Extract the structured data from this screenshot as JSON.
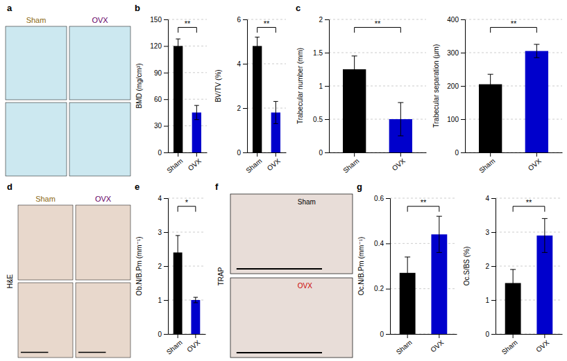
{
  "chart_data": [
    {
      "type": "image",
      "title": "a",
      "color": "#cce8f0",
      "categories": [
        "Sham",
        "OVX"
      ],
      "colors": [
        "#8b6914",
        "#660066"
      ]
    },
    {
      "type": "bar",
      "title": "b",
      "categories": [
        "Sham",
        "OVX"
      ],
      "values": [
        120,
        45
      ],
      "errors": [
        8,
        8
      ],
      "colors": [
        "#000000",
        "#0000cc"
      ],
      "ylabel": "BMD (mg/cm³)",
      "ylim": [
        0,
        150
      ],
      "yticks": [
        0,
        30,
        60,
        90,
        120,
        150
      ],
      "grid": true,
      "annotation": "**"
    },
    {
      "type": "bar",
      "categories": [
        "Sham",
        "OVX"
      ],
      "values": [
        4.8,
        1.8
      ],
      "errors": [
        0.4,
        0.5
      ],
      "colors": [
        "#000000",
        "#0000cc"
      ],
      "ylabel": "BV/TV (%)",
      "ylim": [
        0,
        6
      ],
      "yticks": [
        0,
        2,
        4,
        6
      ],
      "grid": true,
      "annotation": "**"
    },
    {
      "type": "bar",
      "title": "c",
      "categories": [
        "Sham",
        "OVX"
      ],
      "values": [
        1.25,
        0.5
      ],
      "errors": [
        0.2,
        0.25
      ],
      "colors": [
        "#000000",
        "#0000cc"
      ],
      "ylabel": "Trabecular number (mm)",
      "ylim": [
        0,
        2.0
      ],
      "yticks": [
        0,
        0.5,
        1.0,
        1.5,
        2.0
      ],
      "grid": true,
      "annotation": "**"
    },
    {
      "type": "bar",
      "categories": [
        "Sham",
        "OVX"
      ],
      "values": [
        205,
        305
      ],
      "errors": [
        30,
        20
      ],
      "colors": [
        "#000000",
        "#0000cc"
      ],
      "ylabel": "Trabecular separation (μm)",
      "ylim": [
        0,
        400
      ],
      "yticks": [
        0,
        100,
        200,
        300,
        400
      ],
      "grid": true,
      "annotation": "**"
    },
    {
      "type": "image",
      "title": "d",
      "ylabel": "H&E",
      "color": "#e8d8cc",
      "categories": [
        "Sham",
        "OVX"
      ],
      "colors": [
        "#8b6914",
        "#660066"
      ]
    },
    {
      "type": "bar",
      "title": "e",
      "categories": [
        "Sham",
        "OVX"
      ],
      "values": [
        2.4,
        1.0
      ],
      "errors": [
        0.5,
        0.08
      ],
      "colors": [
        "#000000",
        "#0000cc"
      ],
      "ylabel": "Ob.N/B.Pm (mm⁻¹)",
      "ylim": [
        0,
        4
      ],
      "yticks": [
        0,
        1,
        2,
        3,
        4
      ],
      "grid": true,
      "annotation": "*"
    },
    {
      "type": "image",
      "title": "f",
      "ylabel": "TRAP",
      "color": "#e8ddd8",
      "categories": [
        "Sham",
        "OVX"
      ],
      "colors": [
        "#000000",
        "#cc0000"
      ]
    },
    {
      "type": "bar",
      "title": "g",
      "categories": [
        "Sham",
        "OVX"
      ],
      "values": [
        0.27,
        0.44
      ],
      "errors": [
        0.07,
        0.08
      ],
      "colors": [
        "#000000",
        "#0000cc"
      ],
      "ylabel": "Oc.N/B.Pm (mm⁻¹)",
      "ylim": [
        0,
        0.6
      ],
      "yticks": [
        0,
        0.2,
        0.4,
        0.6
      ],
      "grid": true,
      "annotation": "**"
    },
    {
      "type": "bar",
      "categories": [
        "Sham",
        "OVX"
      ],
      "values": [
        1.5,
        2.9
      ],
      "errors": [
        0.4,
        0.5
      ],
      "colors": [
        "#000000",
        "#0000cc"
      ],
      "ylabel": "Oc.S/BS (%)",
      "ylim": [
        0,
        4
      ],
      "yticks": [
        0,
        1,
        2,
        3,
        4
      ],
      "grid": true,
      "annotation": "**"
    }
  ]
}
